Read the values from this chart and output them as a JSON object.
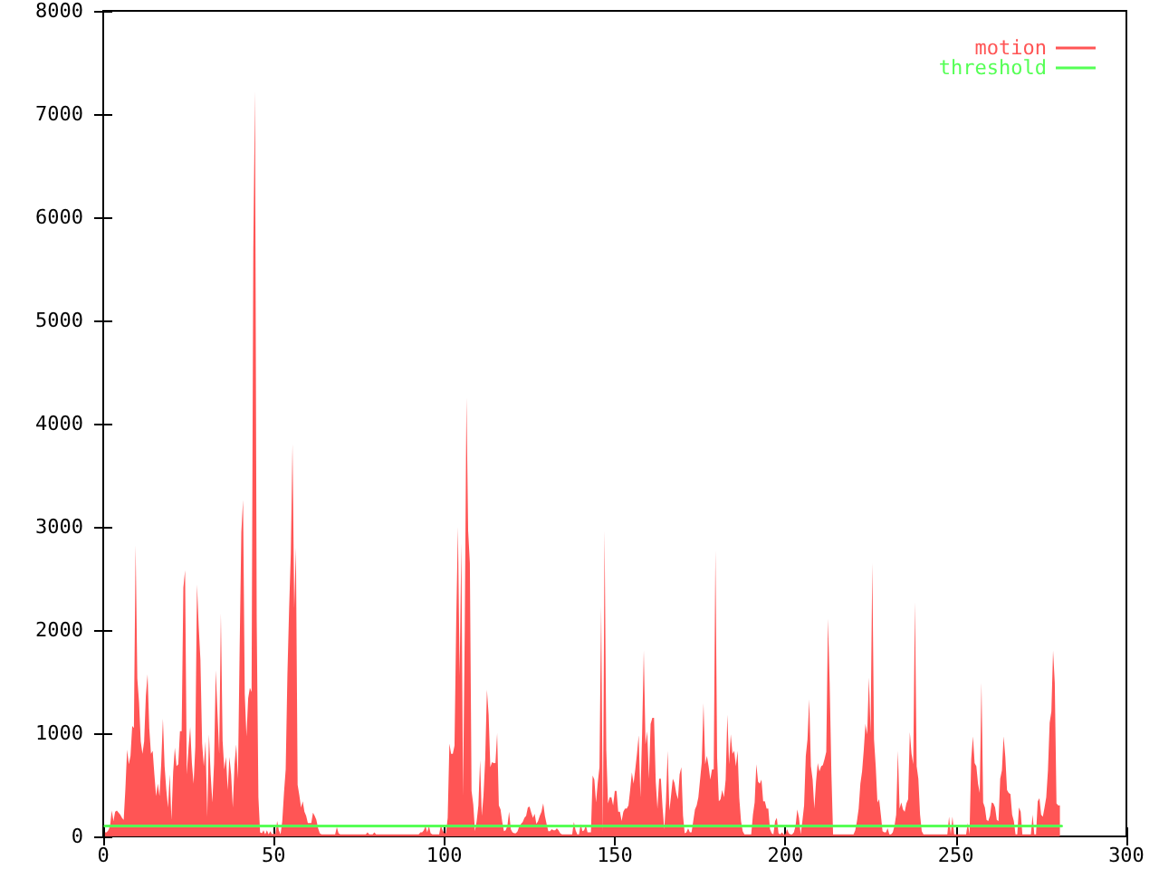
{
  "chart_data": {
    "type": "area",
    "xlim": [
      0,
      300
    ],
    "xticks": [
      0,
      50,
      100,
      150,
      200,
      250,
      300
    ],
    "ylim": [
      0,
      8000
    ],
    "yticks": [
      0,
      1000,
      2000,
      3000,
      4000,
      5000,
      6000,
      7000,
      8000
    ],
    "legend": "top right",
    "marker": "none",
    "series": [
      {
        "name": "motion",
        "color": "#ff5555",
        "x": [
          0.5,
          1,
          1.5,
          2,
          2.5,
          3,
          3.5,
          4,
          4.5,
          5,
          5.5,
          6,
          6.5,
          7,
          7.5,
          8,
          8.5,
          9,
          9.5,
          10,
          10.5,
          11,
          11.5,
          12,
          12.5,
          13,
          13.5,
          14,
          14.5,
          15,
          15.5,
          16,
          16.5,
          17,
          17.5,
          18,
          18.5,
          19,
          19.5,
          20,
          20.5,
          21,
          21.5,
          22,
          22.5,
          23,
          23.5,
          24,
          24.5,
          25,
          25.5,
          26,
          26.5,
          27,
          27.5,
          28,
          28.5,
          29,
          29.5,
          30,
          30.5,
          31,
          31.5,
          32,
          32.5,
          33,
          33.5,
          34,
          34.5,
          35,
          35.5,
          36,
          36.5,
          37,
          37.5,
          38,
          38.5,
          39,
          39.5,
          40,
          40.5,
          41,
          41.5,
          42,
          42.5,
          43,
          43.5,
          44,
          44.5,
          45,
          45.5,
          46,
          46.5,
          47,
          47.5,
          48,
          48.5,
          49,
          49.5,
          50,
          50.5,
          51,
          51.5,
          52,
          52.5,
          53,
          53.5,
          54,
          54.5,
          55,
          55.5,
          56,
          56.5,
          57,
          57.5,
          58,
          58.5,
          59,
          59.5,
          60,
          60.5,
          61,
          61.5,
          62,
          62.5,
          63,
          63.5,
          64,
          64.5,
          65,
          65.5,
          66,
          66.5,
          67,
          67.5,
          68,
          68.5,
          69,
          69.5,
          70,
          70.5,
          71,
          71.5,
          72,
          72.5,
          73,
          73.5,
          74,
          74.5,
          75,
          75.5,
          76,
          76.5,
          77,
          77.5,
          78,
          78.5,
          79,
          79.5,
          80,
          80.5,
          81,
          81.5,
          82,
          82.5,
          83,
          83.5,
          84,
          84.5,
          85,
          85.5,
          86,
          86.5,
          87,
          87.5,
          88,
          88.5,
          89,
          89.5,
          90,
          90.5,
          91,
          91.5,
          92,
          92.5,
          93,
          93.5,
          94,
          94.5,
          95,
          95.5,
          96,
          96.5,
          97,
          97.5,
          98,
          98.5,
          99,
          99.5,
          100,
          100.5,
          101,
          101.5,
          102,
          102.5,
          103,
          103.5,
          104,
          104.5,
          105,
          105.5,
          106,
          106.5,
          107,
          107.5,
          108,
          108.5,
          109,
          109.5,
          110,
          110.5,
          111,
          111.5,
          112,
          112.5,
          113,
          113.5,
          114,
          114.5,
          115,
          115.5,
          116,
          116.5,
          117,
          117.5,
          118,
          118.5,
          119,
          119.5,
          120,
          120.5,
          121,
          121.5,
          122,
          122.5,
          123,
          123.5,
          124,
          124.5,
          125,
          125.5,
          126,
          126.5,
          127,
          127.5,
          128,
          128.5,
          129,
          129.5,
          130,
          130.5,
          131,
          131.5,
          132,
          132.5,
          133,
          133.5,
          134,
          134.5,
          135,
          135.5,
          136,
          136.5,
          137,
          137.5,
          138,
          138.5,
          139,
          139.5,
          140,
          140.5,
          141,
          141.5,
          142,
          142.5,
          143,
          143.5,
          144,
          144.5,
          145,
          145.5,
          146,
          146.5,
          147,
          147.5,
          148,
          148.5,
          149,
          149.5,
          150,
          150.5,
          151,
          151.5,
          152,
          152.5,
          153,
          153.5,
          154,
          154.5,
          155,
          155.5,
          156,
          156.5,
          157,
          157.5,
          158,
          158.5,
          159,
          159.5,
          160,
          160.5,
          161,
          161.5,
          162,
          162.5,
          163,
          163.5,
          164,
          164.5,
          165,
          165.5,
          166,
          166.5,
          167,
          167.5,
          168,
          168.5,
          169,
          169.5,
          170,
          170.5,
          171,
          171.5,
          172,
          172.5,
          173,
          173.5,
          174,
          174.5,
          175,
          175.5,
          176,
          176.5,
          177,
          177.5,
          178,
          178.5,
          179,
          179.5,
          180,
          180.5,
          181,
          181.5,
          182,
          182.5,
          183,
          183.5,
          184,
          184.5,
          185,
          185.5,
          186,
          186.5,
          187,
          187.5,
          188,
          188.5,
          189,
          189.5,
          190,
          190.5,
          191,
          191.5,
          192,
          192.5,
          193,
          193.5,
          194,
          194.5,
          195,
          195.5,
          196,
          196.5,
          197,
          197.5,
          198,
          198.5,
          199,
          199.5,
          200,
          200.5,
          201,
          201.5,
          202,
          202.5,
          203,
          203.5,
          204,
          204.5,
          205,
          205.5,
          206,
          206.5,
          207,
          207.5,
          208,
          208.5,
          209,
          209.5,
          210,
          210.5,
          211,
          211.5,
          212,
          212.5,
          213,
          213.5,
          214,
          214.5,
          215,
          215.5,
          216,
          216.5,
          217,
          217.5,
          218,
          218.5,
          219,
          219.5,
          220,
          220.5,
          221,
          221.5,
          222,
          222.5,
          223,
          223.5,
          224,
          224.5,
          225,
          225.5,
          226,
          226.5,
          227,
          227.5,
          228,
          228.5,
          229,
          229.5,
          230,
          230.5,
          231,
          231.5,
          232,
          232.5,
          233,
          233.5,
          234,
          234.5,
          235,
          235.5,
          236,
          236.5,
          237,
          237.5,
          238,
          238.5,
          239,
          239.5,
          240,
          240.5,
          241,
          241.5,
          242,
          242.5,
          243,
          243.5,
          244,
          244.5,
          245,
          245.5,
          246,
          246.5,
          247,
          247.5,
          248,
          248.5,
          249,
          249.5,
          250,
          250.5,
          251,
          251.5,
          252,
          252.5,
          253,
          253.5,
          254,
          254.5,
          255,
          255.5,
          256,
          256.5,
          257,
          257.5,
          258,
          258.5,
          259,
          259.5,
          260,
          260.5,
          261,
          261.5,
          262,
          262.5,
          263,
          263.5,
          264,
          264.5,
          265,
          265.5,
          266,
          266.5,
          267,
          267.5,
          268,
          268.5,
          269,
          269.5,
          270,
          270.5,
          271,
          271.5,
          272,
          272.5,
          273,
          273.5,
          274,
          274.5,
          275,
          275.5,
          276,
          276.5,
          277,
          277.5,
          278,
          278.5,
          279,
          279.5,
          280,
          280.5
        ],
        "values": [
          40,
          40,
          60,
          100,
          250,
          150,
          240,
          250,
          230,
          210,
          180,
          160,
          460,
          840,
          700,
          780,
          1070,
          1050,
          2820,
          1530,
          1300,
          920,
          800,
          920,
          1360,
          1570,
          1050,
          800,
          830,
          600,
          390,
          510,
          390,
          700,
          1140,
          680,
          450,
          280,
          600,
          160,
          620,
          860,
          680,
          700,
          1020,
          1020,
          2410,
          2580,
          600,
          850,
          1060,
          710,
          510,
          870,
          2440,
          2030,
          1710,
          900,
          680,
          920,
          190,
          990,
          600,
          330,
          710,
          1610,
          1200,
          800,
          2160,
          930,
          650,
          770,
          450,
          770,
          600,
          280,
          700,
          890,
          560,
          1820,
          2950,
          3260,
          1380,
          970,
          1340,
          1440,
          1400,
          5670,
          7220,
          2100,
          380,
          40,
          30,
          60,
          20,
          60,
          20,
          50,
          20,
          30,
          20,
          150,
          60,
          20,
          150,
          420,
          650,
          1560,
          2200,
          2740,
          3800,
          2210,
          2800,
          500,
          400,
          280,
          340,
          240,
          200,
          130,
          130,
          130,
          230,
          200,
          160,
          80,
          30,
          20,
          20,
          20,
          20,
          20,
          20,
          20,
          20,
          20,
          90,
          30,
          20,
          20,
          20,
          20,
          20,
          20,
          20,
          20,
          20,
          20,
          20,
          20,
          20,
          20,
          20,
          20,
          40,
          20,
          20,
          20,
          40,
          20,
          20,
          20,
          20,
          20,
          20,
          20,
          20,
          20,
          20,
          20,
          20,
          20,
          20,
          20,
          20,
          20,
          20,
          20,
          20,
          20,
          20,
          20,
          20,
          20,
          20,
          40,
          40,
          60,
          100,
          40,
          100,
          30,
          20,
          20,
          20,
          20,
          20,
          110,
          60,
          30,
          30,
          180,
          900,
          800,
          800,
          880,
          2080,
          3000,
          1560,
          2840,
          400,
          2000,
          4250,
          2960,
          2650,
          440,
          310,
          50,
          150,
          300,
          740,
          200,
          400,
          750,
          1420,
          1180,
          670,
          720,
          710,
          710,
          1000,
          300,
          260,
          140,
          50,
          60,
          100,
          240,
          70,
          40,
          30,
          30,
          50,
          100,
          120,
          140,
          180,
          200,
          280,
          290,
          230,
          180,
          220,
          120,
          150,
          200,
          240,
          320,
          200,
          120,
          50,
          50,
          70,
          60,
          60,
          80,
          60,
          30,
          20,
          20,
          20,
          20,
          20,
          20,
          20,
          140,
          60,
          20,
          20,
          120,
          50,
          60,
          110,
          40,
          40,
          40,
          590,
          550,
          330,
          520,
          670,
          2230,
          40,
          2960,
          840,
          320,
          380,
          380,
          300,
          440,
          440,
          240,
          240,
          150,
          240,
          270,
          270,
          300,
          450,
          620,
          510,
          650,
          800,
          980,
          380,
          990,
          1800,
          890,
          1020,
          560,
          1090,
          1150,
          1150,
          530,
          270,
          560,
          560,
          280,
          70,
          340,
          830,
          250,
          400,
          560,
          520,
          420,
          360,
          600,
          670,
          200,
          30,
          40,
          80,
          40,
          40,
          150,
          260,
          300,
          380,
          550,
          720,
          1290,
          700,
          780,
          680,
          550,
          650,
          650,
          2770,
          760,
          340,
          360,
          450,
          380,
          550,
          1180,
          700,
          990,
          800,
          830,
          680,
          830,
          370,
          150,
          50,
          20,
          20,
          20,
          20,
          20,
          210,
          330,
          700,
          530,
          510,
          550,
          340,
          340,
          270,
          270,
          70,
          30,
          20,
          150,
          180,
          30,
          20,
          40,
          20,
          20,
          70,
          30,
          20,
          20,
          40,
          100,
          260,
          180,
          20,
          150,
          300,
          780,
          940,
          1330,
          680,
          550,
          270,
          530,
          710,
          630,
          680,
          690,
          750,
          820,
          2110,
          1480,
          620,
          20,
          20,
          20,
          20,
          20,
          20,
          20,
          20,
          20,
          20,
          20,
          20,
          20,
          60,
          150,
          270,
          510,
          630,
          840,
          1090,
          990,
          1540,
          1000,
          2650,
          940,
          680,
          330,
          360,
          210,
          50,
          40,
          40,
          80,
          20,
          20,
          40,
          100,
          210,
          830,
          270,
          330,
          260,
          240,
          320,
          360,
          1010,
          800,
          700,
          2270,
          680,
          560,
          210,
          50,
          20,
          20,
          20,
          20,
          20,
          20,
          20,
          20,
          20,
          20,
          20,
          20,
          20,
          20,
          20,
          190,
          20,
          190,
          20,
          20,
          20,
          20,
          20,
          20,
          20,
          20,
          130,
          20,
          750,
          970,
          710,
          680,
          510,
          420,
          1490,
          330,
          280,
          160,
          150,
          200,
          330,
          320,
          280,
          160,
          150,
          560,
          640,
          970,
          770,
          450,
          420,
          410,
          210,
          150,
          20,
          20,
          280,
          240,
          20,
          20,
          20,
          20,
          20,
          20,
          210,
          20,
          20,
          340,
          370,
          210,
          190,
          280,
          380,
          640,
          1100,
          1210,
          1800,
          1490,
          320,
          300,
          300
        ]
      },
      {
        "name": "threshold",
        "type": "line",
        "color": "#55ff55",
        "x": [
          0.5,
          281
        ],
        "values": [
          100,
          100
        ]
      }
    ]
  }
}
